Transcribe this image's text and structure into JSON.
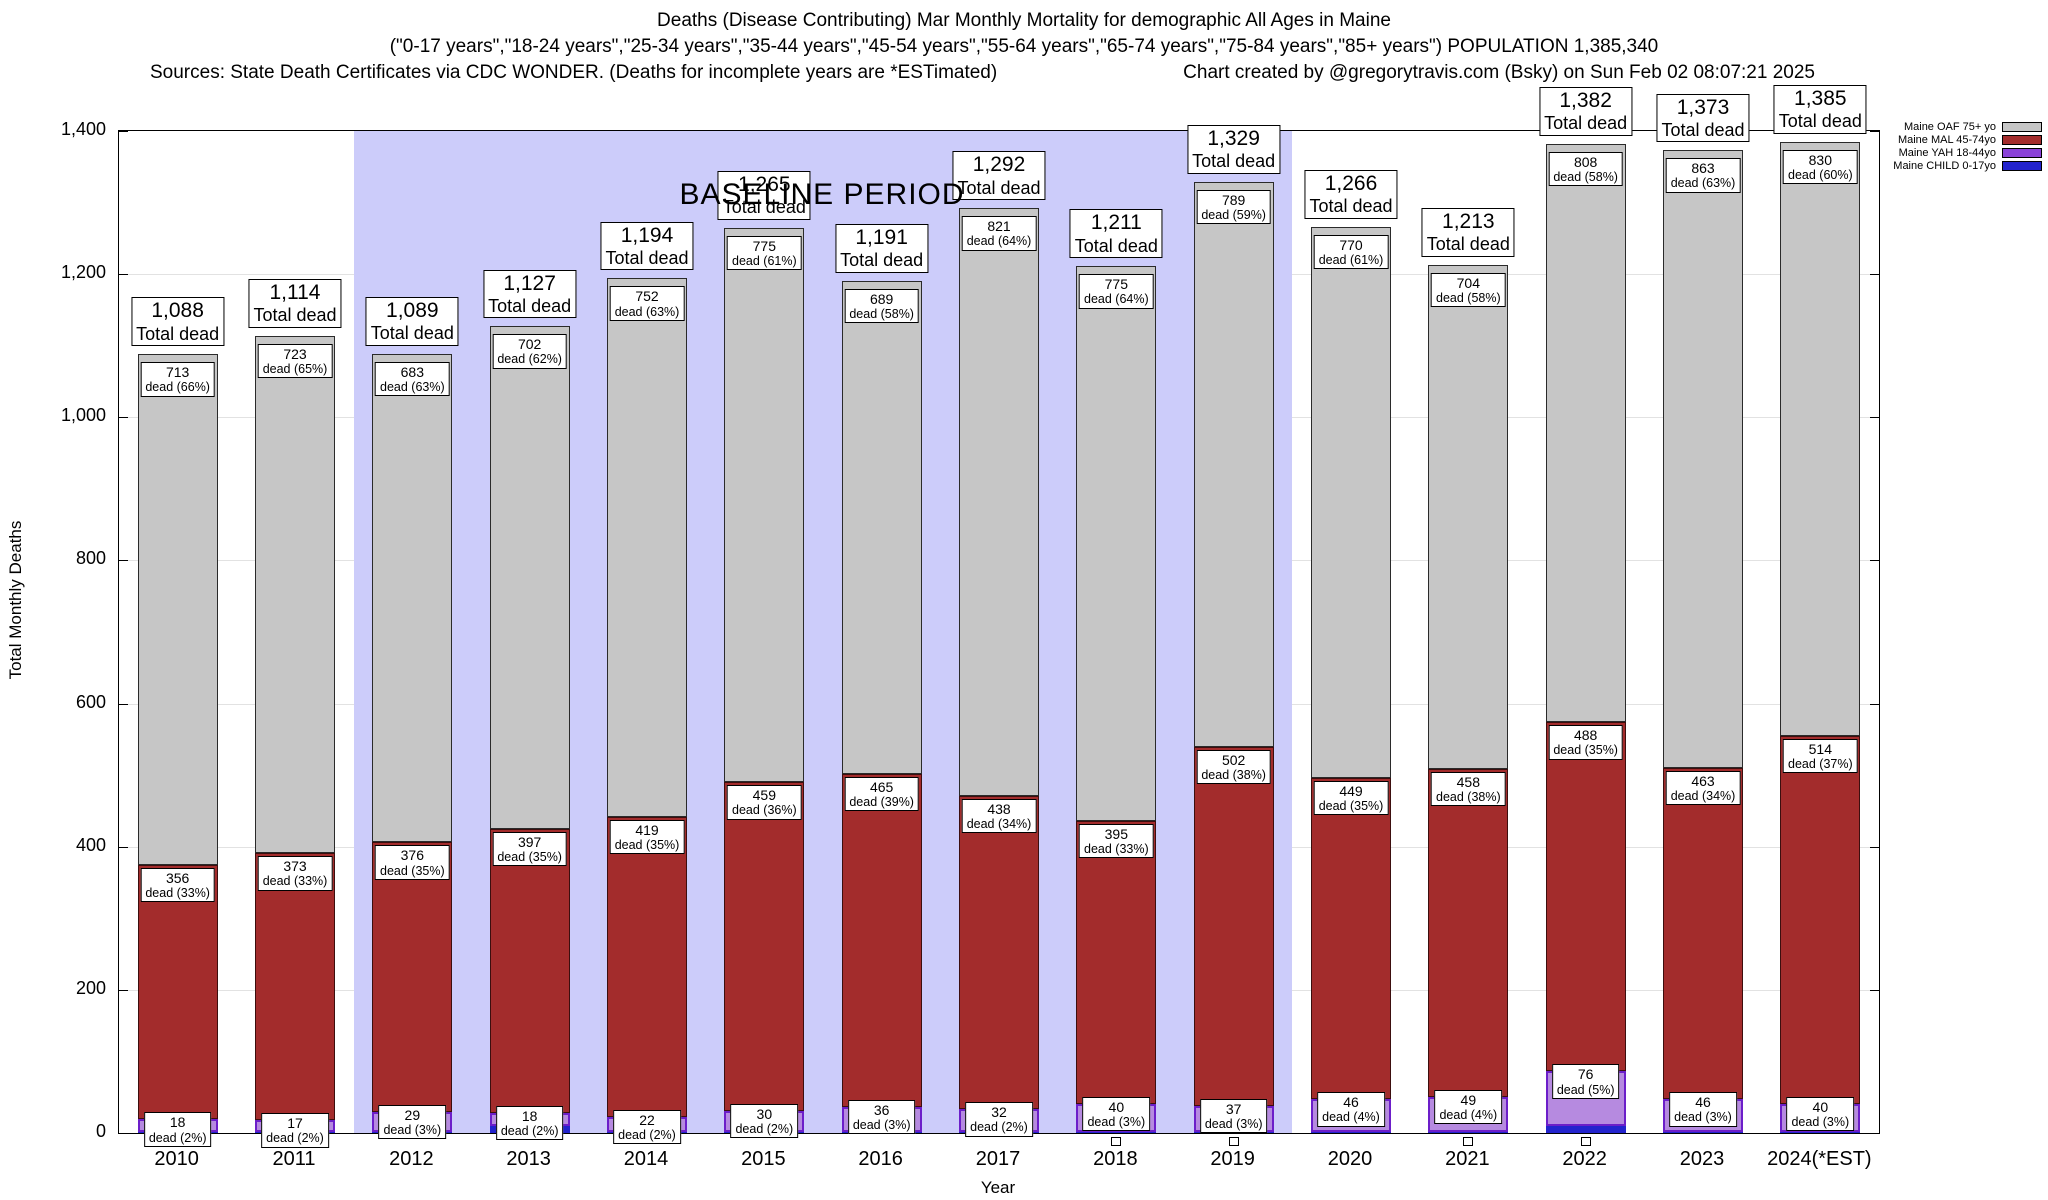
{
  "header": {
    "line1": "Deaths (Disease Contributing) Mar Monthly Mortality for demographic All Ages in Maine",
    "line2": "(\"0-17 years\",\"18-24 years\",\"25-34 years\",\"35-44 years\",\"45-54 years\",\"55-64 years\",\"65-74 years\",\"75-84 years\",\"85+ years\") POPULATION 1,385,340",
    "line3_left": "Sources: State Death Certificates via CDC WONDER. (Deaths for incomplete years are *ESTimated)",
    "line3_right": "Chart created by @gregorytravis.com (Bsky) on Sun Feb 02 08:07:21 2025"
  },
  "chart_data": {
    "type": "bar",
    "stacked": true,
    "title": "Deaths (Disease Contributing) Mar Monthly Mortality for demographic All Ages in Maine",
    "xlabel": "Year",
    "ylabel": "Total Monthly Deaths",
    "ylim": [
      0,
      1400
    ],
    "grid": true,
    "total_sub_label": "Total dead",
    "yticks": [
      {
        "v": 0,
        "label": "0"
      },
      {
        "v": 200,
        "label": "200"
      },
      {
        "v": 400,
        "label": "400"
      },
      {
        "v": 600,
        "label": "600"
      },
      {
        "v": 800,
        "label": "800"
      },
      {
        "v": 1000,
        "label": "1,000"
      },
      {
        "v": 1200,
        "label": "1,200"
      },
      {
        "v": 1400,
        "label": "1,400"
      }
    ],
    "legend": [
      {
        "label": "Maine OAF 75+ yo",
        "color": "#c6c6c6"
      },
      {
        "label": "Maine MAL 45-74yo",
        "color": "#a32c2c"
      },
      {
        "label": "Maine YAH 18-44yo",
        "color": "#8a42d8"
      },
      {
        "label": "Maine CHILD 0-17yo",
        "color": "#2323cd"
      }
    ],
    "legend_position": "top-right",
    "baseline_period": {
      "label": "BASELINE PERIOD",
      "start_index": 2,
      "end_index": 9,
      "from": "2012",
      "to": "2019"
    },
    "categories": [
      "2010",
      "2011",
      "2012",
      "2013",
      "2014",
      "2015",
      "2016",
      "2017",
      "2018",
      "2019",
      "2020",
      "2021",
      "2022",
      "2023",
      "2024(*EST)"
    ],
    "bars": [
      {
        "year": "2010",
        "total": 1088,
        "total_label": "1,088",
        "segments": {
          "oaf": {
            "v": 713,
            "line1": "713",
            "line2": "dead (66%)"
          },
          "mal": {
            "v": 356,
            "line1": "356",
            "line2": "dead (33%)"
          },
          "yah": {
            "v": 18,
            "line1": "18",
            "line2": "dead (2%)"
          }
        },
        "tiny_box": false
      },
      {
        "year": "2011",
        "total": 1114,
        "total_label": "1,114",
        "segments": {
          "oaf": {
            "v": 723,
            "line1": "723",
            "line2": "dead (65%)"
          },
          "mal": {
            "v": 373,
            "line1": "373",
            "line2": "dead (33%)"
          },
          "yah": {
            "v": 17,
            "line1": "17",
            "line2": "dead (2%)"
          }
        },
        "tiny_box": false
      },
      {
        "year": "2012",
        "total": 1089,
        "total_label": "1,089",
        "segments": {
          "oaf": {
            "v": 683,
            "line1": "683",
            "line2": "dead (63%)"
          },
          "mal": {
            "v": 376,
            "line1": "376",
            "line2": "dead (35%)"
          },
          "yah": {
            "v": 29,
            "line1": "29",
            "line2": "dead (3%)"
          }
        },
        "tiny_box": false
      },
      {
        "year": "2013",
        "total": 1127,
        "total_label": "1,127",
        "segments": {
          "oaf": {
            "v": 702,
            "line1": "702",
            "line2": "dead (62%)"
          },
          "mal": {
            "v": 397,
            "line1": "397",
            "line2": "dead (35%)"
          },
          "yah": {
            "v": 18,
            "line1": "18",
            "line2": "dead (2%)"
          }
        },
        "tiny_box": false
      },
      {
        "year": "2014",
        "total": 1194,
        "total_label": "1,194",
        "segments": {
          "oaf": {
            "v": 752,
            "line1": "752",
            "line2": "dead (63%)"
          },
          "mal": {
            "v": 419,
            "line1": "419",
            "line2": "dead (35%)"
          },
          "yah": {
            "v": 22,
            "line1": "22",
            "line2": "dead (2%)"
          }
        },
        "tiny_box": false
      },
      {
        "year": "2015",
        "total": 1265,
        "total_label": "1,265",
        "segments": {
          "oaf": {
            "v": 775,
            "line1": "775",
            "line2": "dead (61%)"
          },
          "mal": {
            "v": 459,
            "line1": "459",
            "line2": "dead (36%)"
          },
          "yah": {
            "v": 30,
            "line1": "30",
            "line2": "dead (2%)"
          }
        },
        "tiny_box": false
      },
      {
        "year": "2016",
        "total": 1191,
        "total_label": "1,191",
        "segments": {
          "oaf": {
            "v": 689,
            "line1": "689",
            "line2": "dead (58%)"
          },
          "mal": {
            "v": 465,
            "line1": "465",
            "line2": "dead (39%)"
          },
          "yah": {
            "v": 36,
            "line1": "36",
            "line2": "dead (3%)"
          }
        },
        "tiny_box": false
      },
      {
        "year": "2017",
        "total": 1292,
        "total_label": "1,292",
        "segments": {
          "oaf": {
            "v": 821,
            "line1": "821",
            "line2": "dead (64%)"
          },
          "mal": {
            "v": 438,
            "line1": "438",
            "line2": "dead (34%)"
          },
          "yah": {
            "v": 32,
            "line1": "32",
            "line2": "dead (2%)"
          }
        },
        "tiny_box": false
      },
      {
        "year": "2018",
        "total": 1211,
        "total_label": "1,211",
        "segments": {
          "oaf": {
            "v": 775,
            "line1": "775",
            "line2": "dead (64%)"
          },
          "mal": {
            "v": 395,
            "line1": "395",
            "line2": "dead (33%)"
          },
          "yah": {
            "v": 40,
            "line1": "40",
            "line2": "dead (3%)"
          }
        },
        "tiny_box": true
      },
      {
        "year": "2019",
        "total": 1329,
        "total_label": "1,329",
        "segments": {
          "oaf": {
            "v": 789,
            "line1": "789",
            "line2": "dead (59%)"
          },
          "mal": {
            "v": 502,
            "line1": "502",
            "line2": "dead (38%)"
          },
          "yah": {
            "v": 37,
            "line1": "37",
            "line2": "dead (3%)"
          }
        },
        "tiny_box": true
      },
      {
        "year": "2020",
        "total": 1266,
        "total_label": "1,266",
        "segments": {
          "oaf": {
            "v": 770,
            "line1": "770",
            "line2": "dead (61%)"
          },
          "mal": {
            "v": 449,
            "line1": "449",
            "line2": "dead (35%)"
          },
          "yah": {
            "v": 46,
            "line1": "46",
            "line2": "dead (4%)"
          }
        },
        "tiny_box": false
      },
      {
        "year": "2021",
        "total": 1213,
        "total_label": "1,213",
        "segments": {
          "oaf": {
            "v": 704,
            "line1": "704",
            "line2": "dead (58%)"
          },
          "mal": {
            "v": 458,
            "line1": "458",
            "line2": "dead (38%)"
          },
          "yah": {
            "v": 49,
            "line1": "49",
            "line2": "dead (4%)"
          }
        },
        "tiny_box": true
      },
      {
        "year": "2022",
        "total": 1382,
        "total_label": "1,382",
        "segments": {
          "oaf": {
            "v": 808,
            "line1": "808",
            "line2": "dead (58%)"
          },
          "mal": {
            "v": 488,
            "line1": "488",
            "line2": "dead (35%)"
          },
          "yah": {
            "v": 76,
            "line1": "76",
            "line2": "dead (5%)"
          }
        },
        "tiny_box": true
      },
      {
        "year": "2023",
        "total": 1373,
        "total_label": "1,373",
        "segments": {
          "oaf": {
            "v": 863,
            "line1": "863",
            "line2": "dead (63%)"
          },
          "mal": {
            "v": 463,
            "line1": "463",
            "line2": "dead (34%)"
          },
          "yah": {
            "v": 46,
            "line1": "46",
            "line2": "dead (3%)"
          }
        },
        "tiny_box": false
      },
      {
        "year": "2024(*EST)",
        "total": 1385,
        "total_label": "1,385",
        "segments": {
          "oaf": {
            "v": 830,
            "line1": "830",
            "line2": "dead (60%)"
          },
          "mal": {
            "v": 514,
            "line1": "514",
            "line2": "dead (37%)"
          },
          "yah": {
            "v": 40,
            "line1": "40",
            "line2": "dead (3%)"
          }
        },
        "tiny_box": false
      }
    ]
  }
}
